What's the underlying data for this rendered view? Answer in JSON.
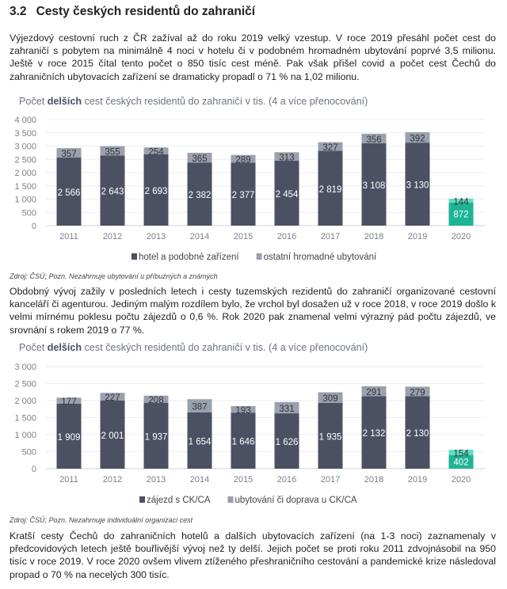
{
  "heading": {
    "number": "3.2",
    "title": "Cesty českých residentů do zahraničí"
  },
  "paragraphs": [
    "Výjezdový cestovní ruch z ČR zažíval až do roku 2019 velký vzestup. V roce 2019 přesáhl počet cest do zahraničí s pobytem na minimálně 4 noci v hotelu či v podobném hromadném ubytování poprvé 3,5 milionu. Ještě v roce 2015 čítal tento počet o 850 tisíc cest méně. Pak však přišel covid a počet cest Čechů do zahraničních ubytovacích zařízení se dramaticky propadl o 71 % na 1,02 milionu.",
    "Obdobný vývoj zažily v posledních letech i cesty tuzemských rezidentů do zahraničí organizované cestovní kanceláří či agenturou. Jediným malým rozdílem bylo, že vrchol byl dosažen už v roce 2018, v roce 2019 došlo k velmi mírnému poklesu počtu zájezdů o 0,6 %. Rok 2020 pak znamenal velmi výrazný pád počtu zájezdů, ve srovnání s rokem 2019 o 77 %.",
    "Kratší cesty Čechů do zahraničních hotelů a dalších ubytovacích zařízení (na 1-3 noci) zaznamenaly v předcovidových letech ještě bouřlivější vývoj než ty delší. Jejich počet se proti roku 2011 zdvojnásobil na 950 tisíc v roce 2019. V roce 2020 ovšem vlivem ztíženého přeshraničního cestování a pandemické krize následoval propad o 70 % na necelých 300 tisíc."
  ],
  "sources": [
    "Zdroj: ČSÚ; Pozn. Nezahrnuje ubytování u příbuzných a známých",
    "Zdroj: ČSÚ; Pozn. Nezahrnuje individuální organizaci cest"
  ],
  "colors": {
    "dark": "#4b5163",
    "light": "#9aa0ae",
    "highlight_dark": "#1db495",
    "highlight_light": "#62dcc3",
    "axis_text": "#7a7f88",
    "grid": "#eceef1"
  },
  "chart_data": [
    {
      "type": "bar",
      "stacked": true,
      "title_pre": "Počet ",
      "title_bold": "delších",
      "title_post": " cest českých residentů do zahraničí v tis. (4 a více přenocování)",
      "categories": [
        "2011",
        "2012",
        "2013",
        "2014",
        "2015",
        "2016",
        "2017",
        "2018",
        "2019",
        "2020"
      ],
      "ylim": [
        0,
        4000
      ],
      "yticks": [
        0,
        500,
        1000,
        1500,
        2000,
        2500,
        3000,
        3500,
        4000
      ],
      "ytick_labels": [
        "0",
        "500",
        "1 000",
        "1 500",
        "2 000",
        "2 500",
        "3 000",
        "3 500",
        "4 000"
      ],
      "grid": true,
      "legend": "bottom",
      "highlight_category": "2020",
      "series": [
        {
          "name": "hotel a podobné zařízení",
          "values": [
            2566,
            2643,
            2693,
            2382,
            2377,
            2454,
            2819,
            3108,
            3130,
            872
          ],
          "labels": [
            "2 566",
            "2 643",
            "2 693",
            "2 382",
            "2 377",
            "2 454",
            "2 819",
            "3 108",
            "3 130",
            "872"
          ]
        },
        {
          "name": "ostatní hromadné ubytování",
          "values": [
            357,
            355,
            254,
            365,
            289,
            313,
            327,
            356,
            392,
            144
          ],
          "labels": [
            "357",
            "355",
            "254",
            "365",
            "289",
            "313",
            "327",
            "356",
            "392",
            "144"
          ]
        }
      ]
    },
    {
      "type": "bar",
      "stacked": true,
      "title_pre": "Počet ",
      "title_bold": "delších",
      "title_post": " cest českých residentů do zahraničí v tis. (4 a více přenocování)",
      "categories": [
        "2011",
        "2012",
        "2013",
        "2014",
        "2015",
        "2016",
        "2017",
        "2018",
        "2019",
        "2020"
      ],
      "ylim": [
        0,
        3000
      ],
      "yticks": [
        0,
        500,
        1000,
        1500,
        2000,
        2500,
        3000
      ],
      "ytick_labels": [
        "0",
        "500",
        "1 000",
        "1 500",
        "2 000",
        "2 500",
        "3 000"
      ],
      "grid": true,
      "legend": "bottom",
      "highlight_category": "2020",
      "series": [
        {
          "name": "zájezd s CK/CA",
          "values": [
            1909,
            2001,
            1937,
            1654,
            1646,
            1626,
            1935,
            2132,
            2130,
            402
          ],
          "labels": [
            "1 909",
            "2 001",
            "1 937",
            "1 654",
            "1 646",
            "1 626",
            "1 935",
            "2 132",
            "2 130",
            "402"
          ]
        },
        {
          "name": "ubytování či doprava u CK/CA",
          "values": [
            177,
            227,
            208,
            387,
            193,
            331,
            309,
            291,
            279,
            154
          ],
          "labels": [
            "177",
            "227",
            "208",
            "387",
            "193",
            "331",
            "309",
            "291",
            "279",
            "154"
          ]
        }
      ]
    }
  ]
}
